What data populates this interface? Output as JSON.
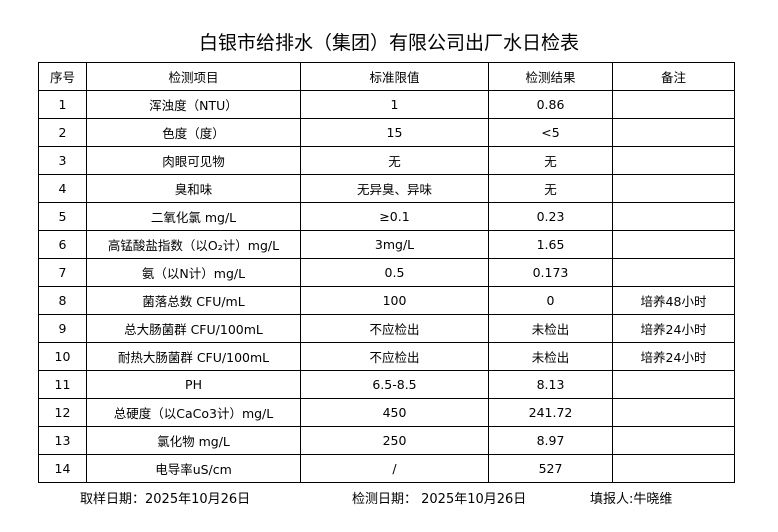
{
  "title": "白银市给排水（集团）有限公司出厂水日检表",
  "table": {
    "header": [
      "序号",
      "检测项目",
      "标准限值",
      "检测结果",
      "备注"
    ],
    "rows": [
      {
        "no": "1",
        "item": "浑浊度（NTU）",
        "standard": "1",
        "result": "0.86"
      },
      {
        "no": "2",
        "item": "色度（度）",
        "standard": "15",
        "result": "<5"
      },
      {
        "no": "3",
        "item": "肉眼可见物",
        "standard": "无",
        "result": "无"
      },
      {
        "no": "4",
        "item": "臭和味",
        "standard": "无异臭、异味",
        "result": "无"
      },
      {
        "no": "5",
        "item": "二氧化氯 mg/L",
        "standard": "≥0.1",
        "result": "0.23"
      },
      {
        "no": "6",
        "item": "高锰酸盐指数（以O₂计）mg/L",
        "standard": "3mg/L",
        "result": "1.65"
      },
      {
        "no": "7",
        "item": "氨（以N计）mg/L",
        "standard": "0.5",
        "result": "0.173"
      },
      {
        "no": "8",
        "item": "菌落总数 CFU/mL",
        "standard": "100",
        "result": "0",
        "remark": "培养48小时"
      },
      {
        "no": "9",
        "item": "总大肠菌群 CFU/100mL",
        "standard": "不应检出",
        "result": "未检出",
        "remark": "培养24小时"
      },
      {
        "no": "10",
        "item": "耐热大肠菌群 CFU/100mL",
        "standard": "不应检出",
        "result": "未检出",
        "remark": "培养24小时"
      },
      {
        "no": "11",
        "item": "PH",
        "standard": "6.5-8.5",
        "result": "8.13"
      },
      {
        "no": "12",
        "item": "总硬度（以CaCo3计）mg/L",
        "standard": "450",
        "result": "241.72"
      },
      {
        "no": "13",
        "item": "氯化物 mg/L",
        "standard": "250",
        "result": "8.97"
      },
      {
        "no": "14",
        "item": "电导率uS/cm",
        "standard": "/",
        "result": "527"
      }
    ]
  },
  "footer": {
    "sampling_date": "取样日期：2025年10月26日",
    "test_date": "检测日期： 2025年10月26日",
    "reporter": "填报人:牛晓维"
  }
}
